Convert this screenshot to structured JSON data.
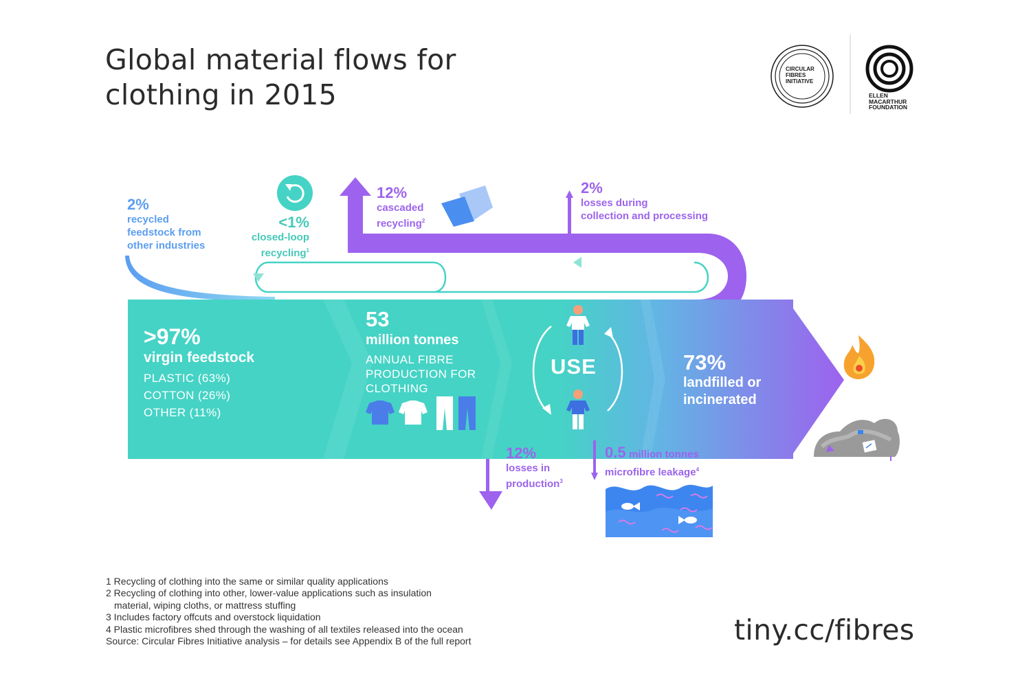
{
  "title": {
    "line1": "Global material flows for",
    "line2": "clothing in 2015"
  },
  "logos": {
    "cfi": [
      "CIRCULAR",
      "FIBRES",
      "INITIATIVE"
    ],
    "emf": [
      "ELLEN",
      "MACARTHUR",
      "FOUNDATION"
    ]
  },
  "recycled_feedstock": {
    "pct": "2%",
    "lines": [
      "recycled",
      "feedstock from",
      "other industries"
    ]
  },
  "closed_loop": {
    "pct": "<1%",
    "lines": [
      "closed-loop",
      "recycling"
    ],
    "note": "1"
  },
  "cascaded": {
    "pct": "12%",
    "lines": [
      "cascaded",
      "recycling"
    ],
    "note": "2"
  },
  "collection_losses": {
    "pct": "2%",
    "lines": [
      "losses during",
      "collection and processing"
    ]
  },
  "virgin": {
    "pct": ">97%",
    "name": "virgin feedstock",
    "rows": [
      "PLASTIC (63%)",
      "COTTON (26%)",
      "OTHER (11%)"
    ]
  },
  "production": {
    "number": "53",
    "unit": "million tonnes",
    "caption": [
      "ANNUAL FIBRE",
      "PRODUCTION FOR",
      "CLOTHING"
    ]
  },
  "use_label": "USE",
  "landfill": {
    "pct": "73%",
    "lines": [
      "landfilled or",
      "incinerated"
    ]
  },
  "production_losses": {
    "pct": "12%",
    "lines": [
      "losses in",
      "production"
    ],
    "note": "3"
  },
  "microfibre": {
    "amount": "0.5",
    "unit": "million tonnes",
    "line": "microfibre leakage",
    "note": "4"
  },
  "footnotes": [
    "1 Recycling of clothing into the same or similar quality applications",
    "2 Recycling of clothing into other, lower-value applications such as insulation",
    "material, wiping cloths, or mattress stuffing",
    "3 Includes factory offcuts and overstock liquidation",
    "4 Plastic microfibres shed through the washing of all textiles released into the ocean",
    "Source: Circular Fibres Initiative analysis – for details see Appendix B of the full report"
  ],
  "url": "tiny.cc/fibres",
  "colors": {
    "teal": "#45d3c5",
    "purple": "#9d62ee",
    "blue": "#5b9df0",
    "text": "#2b2b2b"
  },
  "icons": [
    "recycle-icon",
    "paper-icon",
    "tshirt-icon",
    "trousers-icon",
    "person-icon",
    "flame-icon",
    "landfill-icon",
    "ocean-icon",
    "fish-icon"
  ]
}
